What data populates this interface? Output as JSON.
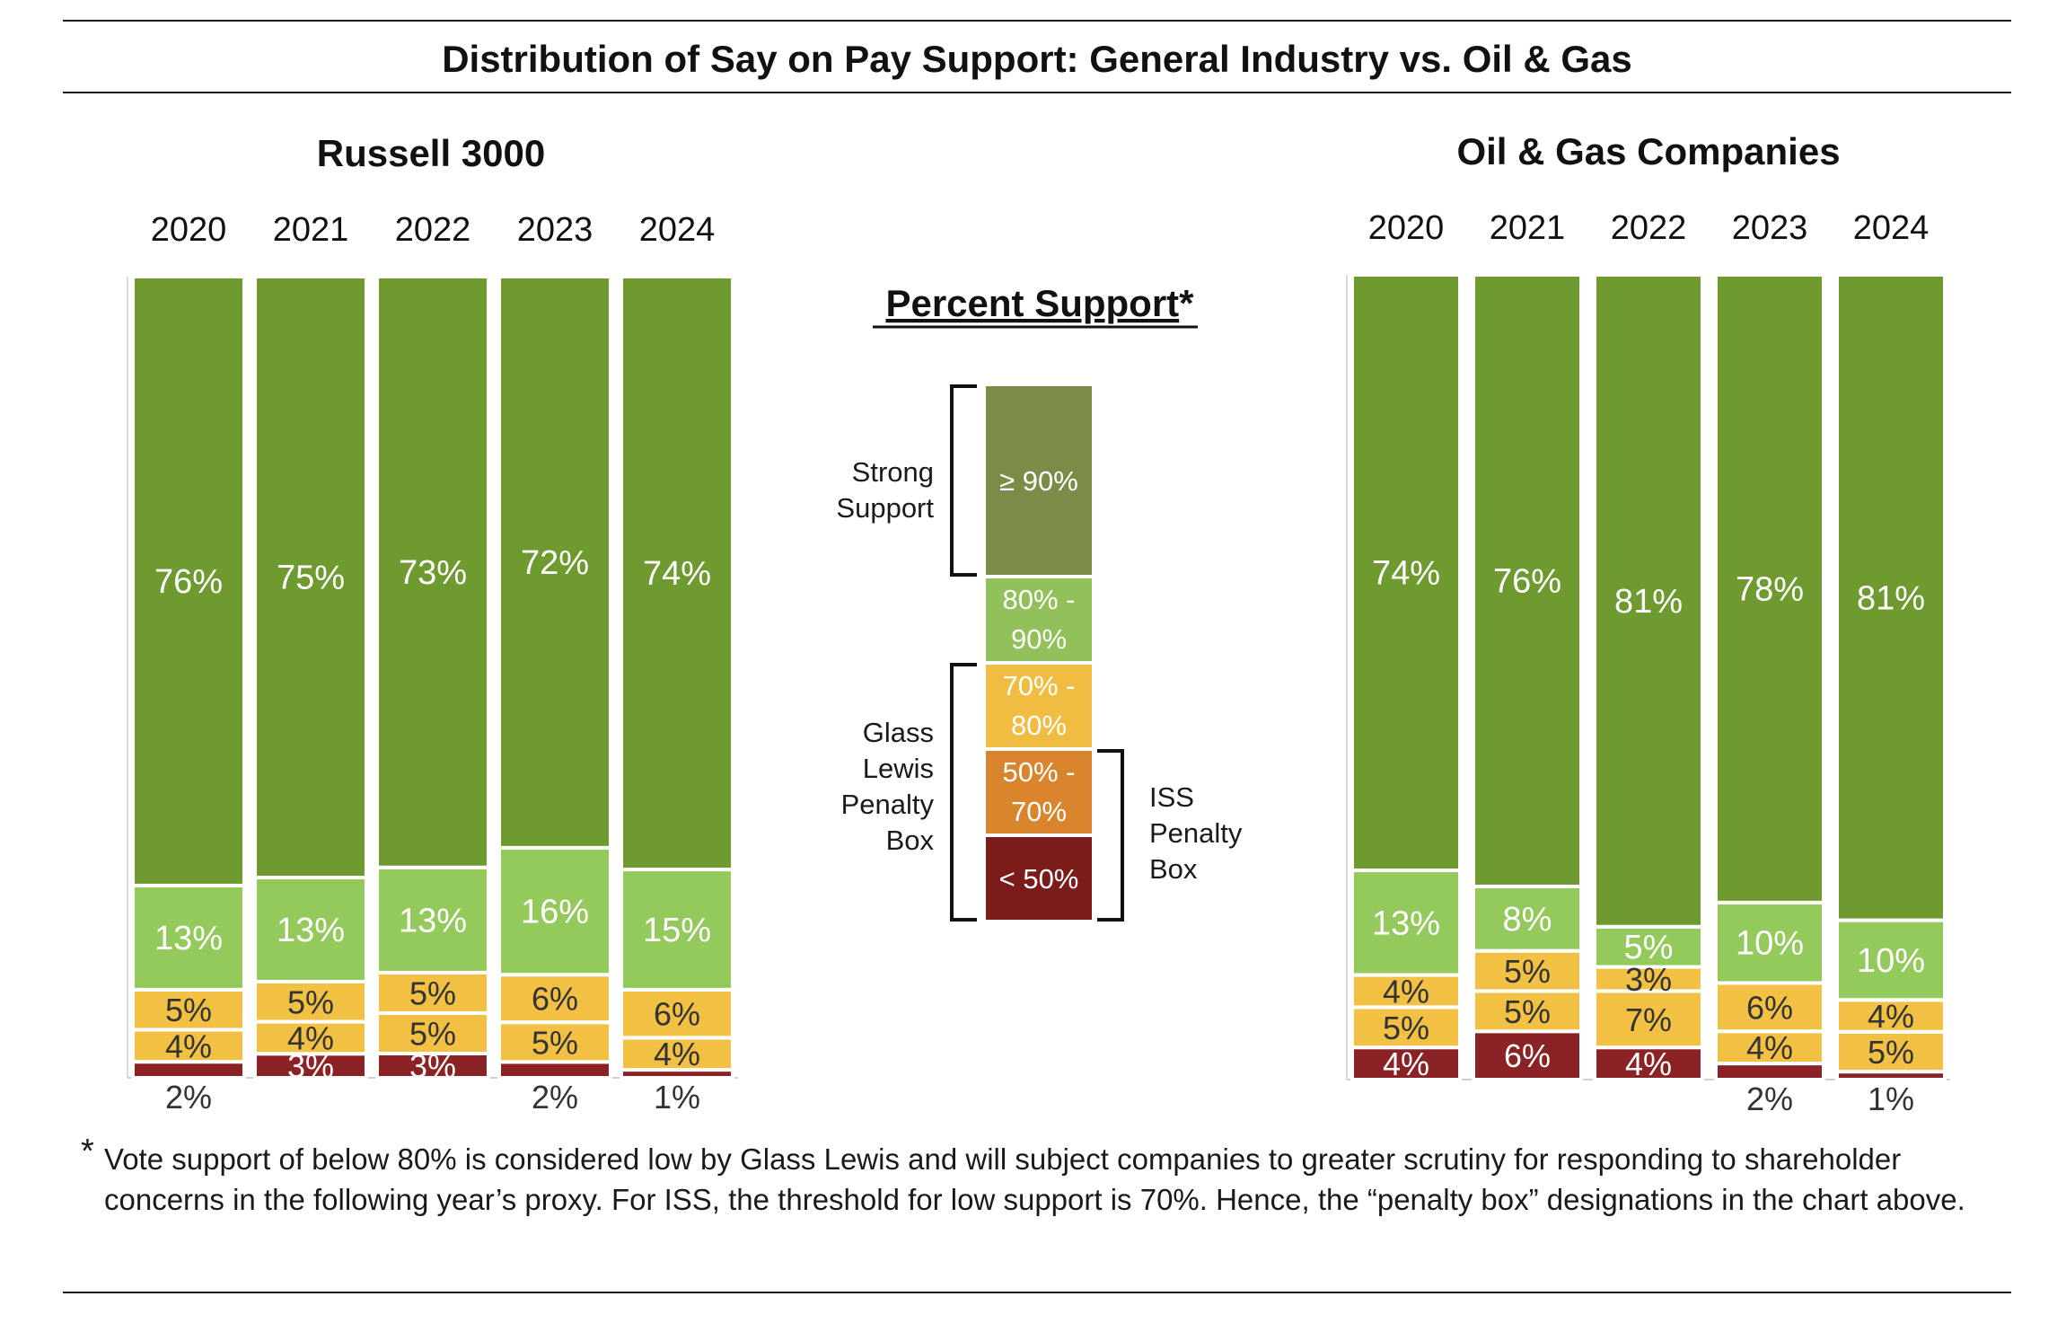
{
  "title": "Distribution of Say on Pay Support: General Industry vs. Oil & Gas",
  "footnote": {
    "marker": "*",
    "text": "Vote support of below 80% is considered low by Glass Lewis and will subject companies to greater scrutiny for responding to shareholder concerns in the following year’s proxy. For ISS, the threshold for low support is 70%. Hence, the “penalty box” designations in the chart above."
  },
  "legend": {
    "title": "Percent Support",
    "title_suffix": "*",
    "items": [
      {
        "key": "ge90",
        "label": "≥ 90%",
        "color": "#7a8c48"
      },
      {
        "key": "80_90",
        "label": "80% - 90%",
        "color": "#92c05a"
      },
      {
        "key": "70_80",
        "label": "70% - 80%",
        "color": "#f0bd42"
      },
      {
        "key": "50_70",
        "label": "50% - 70%",
        "color": "#d9852e"
      },
      {
        "key": "lt50",
        "label": "< 50%",
        "color": "#7b1c1a"
      }
    ],
    "brackets": [
      {
        "label": "Strong Support"
      },
      {
        "label": "Glass Lewis Penalty Box"
      },
      {
        "label": "ISS Penalty Box"
      }
    ]
  },
  "chart_data": [
    {
      "type": "bar",
      "stacked": true,
      "title": "Russell 3000",
      "categories": [
        "2020",
        "2021",
        "2022",
        "2023",
        "2024"
      ],
      "ylim": [
        0,
        100
      ],
      "series": [
        {
          "key": "ge90",
          "color": "#6f9a30",
          "values": [
            76,
            75,
            73,
            72,
            74
          ]
        },
        {
          "key": "80_90",
          "color": "#94c95c",
          "values": [
            13,
            13,
            13,
            16,
            15
          ]
        },
        {
          "key": "70_80",
          "color": "#f2c043",
          "values": [
            5,
            5,
            5,
            6,
            6
          ]
        },
        {
          "key": "50_70",
          "color": "#f2c043",
          "values": [
            4,
            4,
            5,
            5,
            4
          ]
        },
        {
          "key": "lt50",
          "color": "#8b2226",
          "values": [
            2,
            3,
            3,
            2,
            1
          ]
        }
      ]
    },
    {
      "type": "bar",
      "stacked": true,
      "title": "Oil & Gas Companies",
      "categories": [
        "2020",
        "2021",
        "2022",
        "2023",
        "2024"
      ],
      "ylim": [
        0,
        100
      ],
      "series": [
        {
          "key": "ge90",
          "color": "#6f9a30",
          "values": [
            74,
            76,
            81,
            78,
            81
          ]
        },
        {
          "key": "80_90",
          "color": "#94c95c",
          "values": [
            13,
            8,
            5,
            10,
            10
          ]
        },
        {
          "key": "70_80",
          "color": "#f2c043",
          "values": [
            4,
            5,
            3,
            6,
            4
          ]
        },
        {
          "key": "50_70",
          "color": "#f2c043",
          "values": [
            5,
            5,
            7,
            4,
            5
          ]
        },
        {
          "key": "lt50",
          "color": "#8b2226",
          "values": [
            4,
            6,
            4,
            2,
            1
          ]
        }
      ]
    }
  ]
}
